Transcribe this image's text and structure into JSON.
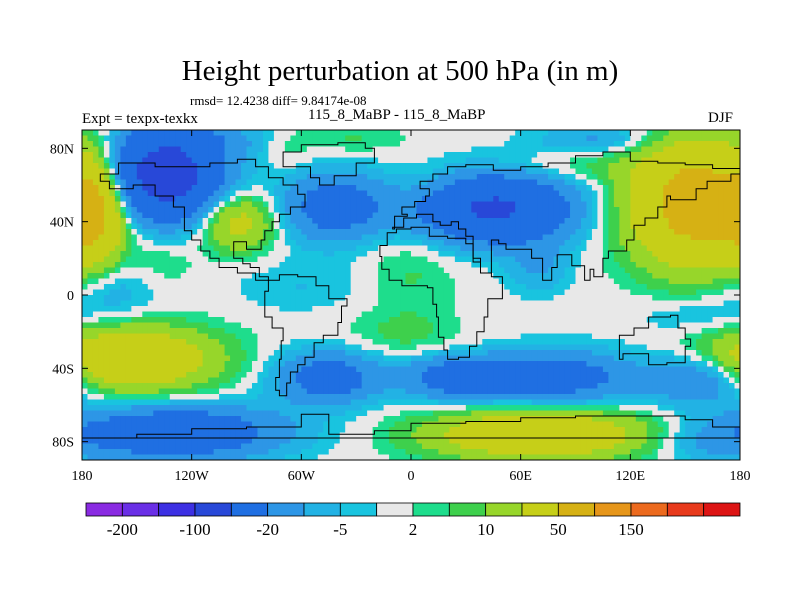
{
  "chart_data": {
    "type": "heatmap",
    "title": "Height perturbation at 500 hPa (in m)",
    "stats_text": "rmsd= 12.4238 diff= 9.84174e-08",
    "left_string": "Expt = texpx-texkx",
    "center_string": "115_8_MaBP - 115_8_MaBP",
    "right_string": "DJF",
    "xlim": [
      -180,
      180
    ],
    "ylim": [
      -90,
      90
    ],
    "x_ticks": [
      {
        "value": -180,
        "label": "180"
      },
      {
        "value": -120,
        "label": "120W"
      },
      {
        "value": -60,
        "label": "60W"
      },
      {
        "value": 0,
        "label": "0"
      },
      {
        "value": 60,
        "label": "60E"
      },
      {
        "value": 120,
        "label": "120E"
      },
      {
        "value": 180,
        "label": "180"
      }
    ],
    "y_ticks": [
      {
        "value": 80,
        "label": "80N"
      },
      {
        "value": 40,
        "label": "40N"
      },
      {
        "value": 0,
        "label": "0"
      },
      {
        "value": -40,
        "label": "40S"
      },
      {
        "value": -80,
        "label": "80S"
      }
    ],
    "colorbar": {
      "colors": [
        "#8a2be2",
        "#6a2fe6",
        "#3d30e3",
        "#2848d8",
        "#1f6fe2",
        "#2d96e6",
        "#22b2e4",
        "#19c4df",
        "#e8e8e8",
        "#1edd8c",
        "#3ed04c",
        "#97d62a",
        "#c6cf18",
        "#d6b114",
        "#e6961a",
        "#ec6a1e",
        "#e83a1c",
        "#dd1414"
      ],
      "labels": [
        {
          "after_bin": 1,
          "text": "-200"
        },
        {
          "after_bin": 3,
          "text": "-100"
        },
        {
          "after_bin": 5,
          "text": "-20"
        },
        {
          "after_bin": 7,
          "text": "-5"
        },
        {
          "after_bin": 9,
          "text": "2"
        },
        {
          "after_bin": 11,
          "text": "10"
        },
        {
          "after_bin": 13,
          "text": "50"
        },
        {
          "after_bin": 15,
          "text": "150"
        }
      ]
    },
    "anomaly_centers": [
      {
        "lon": -135,
        "lat": 65,
        "value": -70,
        "sx": 22,
        "sy": 17
      },
      {
        "lon": -105,
        "lat": 85,
        "value": -8,
        "sx": 30,
        "sy": 7
      },
      {
        "lon": -173,
        "lat": 45,
        "value": 45,
        "sx": 10,
        "sy": 19
      },
      {
        "lon": -95,
        "lat": 40,
        "value": 28,
        "sx": 14,
        "sy": 11
      },
      {
        "lon": -68,
        "lat": 80,
        "value": 5,
        "sx": 10,
        "sy": 8
      },
      {
        "lon": -35,
        "lat": 85,
        "value": 6,
        "sx": 22,
        "sy": 6
      },
      {
        "lon": 10,
        "lat": 60,
        "value": 5,
        "sx": 14,
        "sy": 8
      },
      {
        "lon": -42,
        "lat": 48,
        "value": -30,
        "sx": 20,
        "sy": 13
      },
      {
        "lon": 45,
        "lat": 47,
        "value": -55,
        "sx": 30,
        "sy": 13
      },
      {
        "lon": 105,
        "lat": 85,
        "value": -12,
        "sx": 25,
        "sy": 6
      },
      {
        "lon": 157,
        "lat": 50,
        "value": 70,
        "sx": 25,
        "sy": 23
      },
      {
        "lon": 90,
        "lat": 70,
        "value": 6,
        "sx": 30,
        "sy": 6
      },
      {
        "lon": -165,
        "lat": 5,
        "value": -10,
        "sx": 18,
        "sy": 13
      },
      {
        "lon": -138,
        "lat": 18,
        "value": 6,
        "sx": 14,
        "sy": 10
      },
      {
        "lon": -60,
        "lat": 5,
        "value": -5,
        "sx": 26,
        "sy": 10
      },
      {
        "lon": 0,
        "lat": 15,
        "value": 6,
        "sx": 18,
        "sy": 20
      },
      {
        "lon": -5,
        "lat": -22,
        "value": 6,
        "sx": 22,
        "sy": 9
      },
      {
        "lon": 70,
        "lat": 15,
        "value": -10,
        "sx": 12,
        "sy": 10
      },
      {
        "lon": 160,
        "lat": -12,
        "value": -7,
        "sx": 25,
        "sy": 8
      },
      {
        "lon": -155,
        "lat": -35,
        "value": 45,
        "sx": 32,
        "sy": 12
      },
      {
        "lon": -130,
        "lat": -75,
        "value": -40,
        "sx": 40,
        "sy": 10
      },
      {
        "lon": -45,
        "lat": -45,
        "value": -30,
        "sx": 20,
        "sy": 10
      },
      {
        "lon": 25,
        "lat": -45,
        "value": -30,
        "sx": 20,
        "sy": 8
      },
      {
        "lon": 80,
        "lat": -45,
        "value": -30,
        "sx": 30,
        "sy": 10
      },
      {
        "lon": 160,
        "lat": -45,
        "value": -25,
        "sx": 20,
        "sy": 10
      },
      {
        "lon": 70,
        "lat": -76,
        "value": 45,
        "sx": 40,
        "sy": 9
      },
      {
        "lon": 160,
        "lat": -80,
        "value": -8,
        "sx": 20,
        "sy": 8
      }
    ]
  }
}
